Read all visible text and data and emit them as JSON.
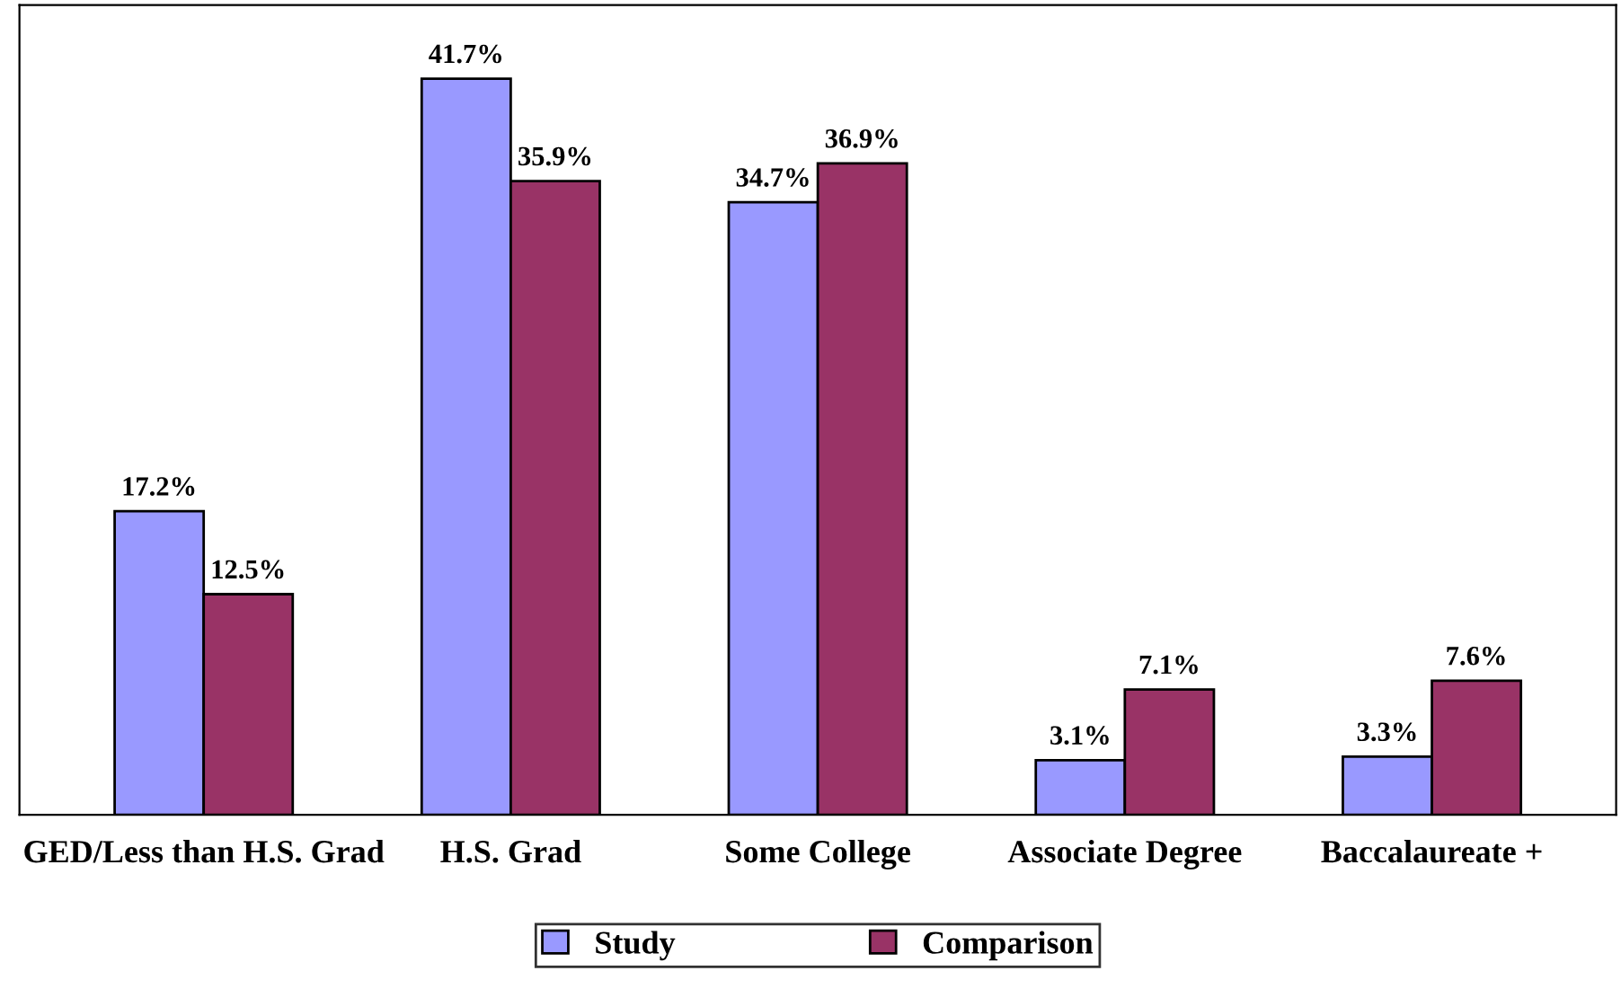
{
  "chart_data": {
    "type": "bar",
    "categories": [
      "GED/Less than H.S. Grad",
      "H.S. Grad",
      "Some College",
      "Associate Degree",
      "Baccalaureate +"
    ],
    "series": [
      {
        "name": "Study",
        "color": "#9999ff",
        "values": [
          17.2,
          41.7,
          34.7,
          3.1,
          3.3
        ],
        "value_labels": [
          "17.2%",
          "41.7%",
          "34.7%",
          "3.1%",
          "3.3%"
        ]
      },
      {
        "name": "Comparison",
        "color": "#993366",
        "values": [
          12.5,
          35.9,
          36.9,
          7.1,
          7.6
        ],
        "value_labels": [
          "12.5%",
          "35.9%",
          "36.9%",
          "7.1%",
          "7.6%"
        ]
      }
    ],
    "legend": "bottom",
    "grid": false
  }
}
